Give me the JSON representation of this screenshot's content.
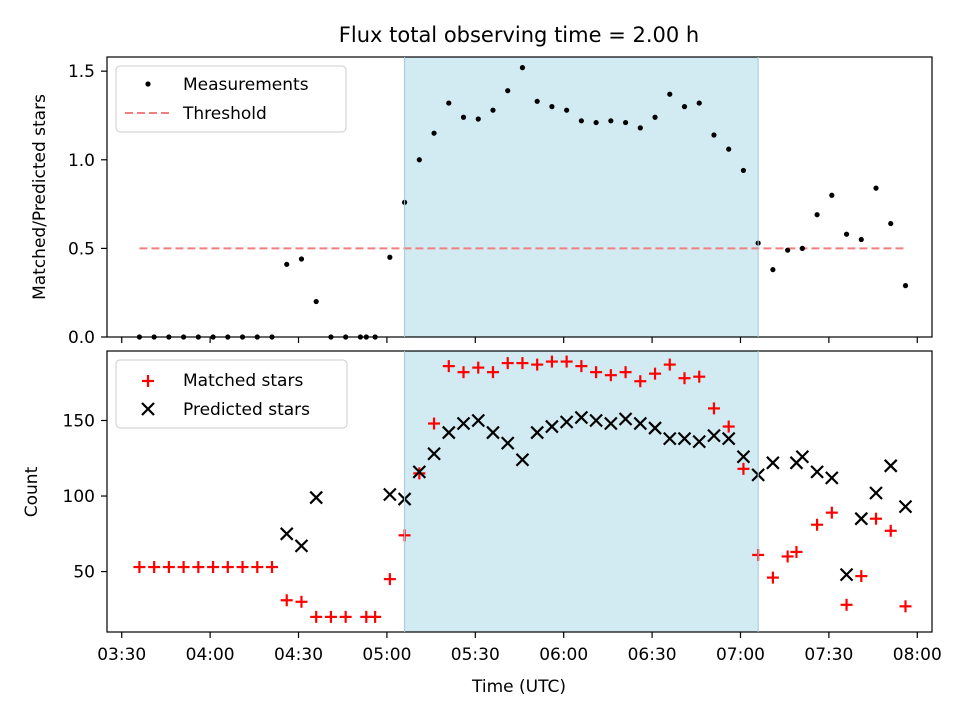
{
  "chart_data": [
    {
      "type": "scatter",
      "title": "Flux total observing time = 2.00 h",
      "ylabel": "Matched/Predicted stars",
      "xlabel": "",
      "xlim": [
        "03:25",
        "08:05"
      ],
      "ylim": [
        0,
        1.58
      ],
      "yticks": [
        0.0,
        0.5,
        1.0,
        1.5
      ],
      "ytick_labels": [
        "0.0",
        "0.5",
        "1.0",
        "1.5"
      ],
      "shaded_region": {
        "from": "05:06",
        "to": "07:06",
        "color": "#add8e6"
      },
      "legend_position": "upper left",
      "legend": [
        "Measurements",
        "Threshold"
      ],
      "threshold": {
        "name": "Threshold",
        "value": 0.5,
        "x_from": "03:36",
        "x_to": "07:56",
        "color": "#f08080",
        "style": "dashed"
      },
      "series": [
        {
          "name": "Measurements",
          "marker": "dot",
          "color": "#000000",
          "points": [
            [
              "03:36",
              0.0
            ],
            [
              "03:41",
              0.0
            ],
            [
              "03:46",
              0.0
            ],
            [
              "03:51",
              0.0
            ],
            [
              "03:56",
              0.0
            ],
            [
              "04:01",
              0.0
            ],
            [
              "04:06",
              0.0
            ],
            [
              "04:11",
              0.0
            ],
            [
              "04:16",
              0.0
            ],
            [
              "04:21",
              0.0
            ],
            [
              "04:26",
              0.41
            ],
            [
              "04:31",
              0.44
            ],
            [
              "04:36",
              0.2
            ],
            [
              "04:41",
              0.0
            ],
            [
              "04:46",
              0.0
            ],
            [
              "04:51",
              0.0
            ],
            [
              "04:53",
              0.0
            ],
            [
              "04:56",
              0.0
            ],
            [
              "05:01",
              0.45
            ],
            [
              "05:06",
              0.76
            ],
            [
              "05:11",
              1.0
            ],
            [
              "05:16",
              1.15
            ],
            [
              "05:21",
              1.32
            ],
            [
              "05:26",
              1.24
            ],
            [
              "05:31",
              1.23
            ],
            [
              "05:36",
              1.28
            ],
            [
              "05:41",
              1.39
            ],
            [
              "05:46",
              1.52
            ],
            [
              "05:51",
              1.33
            ],
            [
              "05:56",
              1.3
            ],
            [
              "06:01",
              1.28
            ],
            [
              "06:06",
              1.22
            ],
            [
              "06:11",
              1.21
            ],
            [
              "06:16",
              1.22
            ],
            [
              "06:21",
              1.21
            ],
            [
              "06:26",
              1.18
            ],
            [
              "06:31",
              1.24
            ],
            [
              "06:36",
              1.37
            ],
            [
              "06:41",
              1.3
            ],
            [
              "06:46",
              1.32
            ],
            [
              "06:51",
              1.14
            ],
            [
              "06:56",
              1.06
            ],
            [
              "07:01",
              0.94
            ],
            [
              "07:06",
              0.53
            ],
            [
              "07:11",
              0.38
            ],
            [
              "07:16",
              0.49
            ],
            [
              "07:21",
              0.5
            ],
            [
              "07:26",
              0.69
            ],
            [
              "07:31",
              0.8
            ],
            [
              "07:36",
              0.58
            ],
            [
              "07:41",
              0.55
            ],
            [
              "07:46",
              0.84
            ],
            [
              "07:51",
              0.64
            ],
            [
              "07:56",
              0.29
            ]
          ]
        }
      ]
    },
    {
      "type": "scatter",
      "title": "",
      "ylabel": "Count",
      "xlabel": "Time (UTC)",
      "xlim": [
        "03:25",
        "08:05"
      ],
      "ylim": [
        10,
        196
      ],
      "yticks": [
        50,
        100,
        150
      ],
      "ytick_labels": [
        "50",
        "100",
        "150"
      ],
      "xticks": [
        "03:30",
        "04:00",
        "04:30",
        "05:00",
        "05:30",
        "06:00",
        "06:30",
        "07:00",
        "07:30",
        "08:00"
      ],
      "shaded_region": {
        "from": "05:06",
        "to": "07:06",
        "color": "#add8e6"
      },
      "legend_position": "upper left",
      "legend": [
        "Matched stars",
        "Predicted stars"
      ],
      "series": [
        {
          "name": "Matched stars",
          "marker": "plus",
          "color": "#ff0000",
          "points": [
            [
              "03:36",
              53
            ],
            [
              "03:41",
              53
            ],
            [
              "03:46",
              53
            ],
            [
              "03:51",
              53
            ],
            [
              "03:56",
              53
            ],
            [
              "04:01",
              53
            ],
            [
              "04:06",
              53
            ],
            [
              "04:11",
              53
            ],
            [
              "04:16",
              53
            ],
            [
              "04:21",
              53
            ],
            [
              "04:26",
              31
            ],
            [
              "04:31",
              30
            ],
            [
              "04:36",
              20
            ],
            [
              "04:41",
              20
            ],
            [
              "04:46",
              20
            ],
            [
              "04:53",
              20
            ],
            [
              "04:56",
              20
            ],
            [
              "05:01",
              45
            ],
            [
              "05:06",
              74
            ],
            [
              "05:11",
              115
            ],
            [
              "05:16",
              148
            ],
            [
              "05:21",
              186
            ],
            [
              "05:26",
              182
            ],
            [
              "05:31",
              185
            ],
            [
              "05:36",
              182
            ],
            [
              "05:41",
              188
            ],
            [
              "05:46",
              188
            ],
            [
              "05:51",
              187
            ],
            [
              "05:56",
              189
            ],
            [
              "06:01",
              189
            ],
            [
              "06:06",
              186
            ],
            [
              "06:11",
              182
            ],
            [
              "06:16",
              180
            ],
            [
              "06:21",
              182
            ],
            [
              "06:26",
              176
            ],
            [
              "06:31",
              181
            ],
            [
              "06:36",
              187
            ],
            [
              "06:41",
              178
            ],
            [
              "06:46",
              179
            ],
            [
              "06:51",
              158
            ],
            [
              "06:56",
              146
            ],
            [
              "07:01",
              118
            ],
            [
              "07:06",
              61
            ],
            [
              "07:11",
              46
            ],
            [
              "07:16",
              60
            ],
            [
              "07:19",
              63
            ],
            [
              "07:26",
              81
            ],
            [
              "07:31",
              89
            ],
            [
              "07:36",
              28
            ],
            [
              "07:41",
              47
            ],
            [
              "07:46",
              85
            ],
            [
              "07:51",
              77
            ],
            [
              "07:56",
              27
            ]
          ]
        },
        {
          "name": "Predicted stars",
          "marker": "x",
          "color": "#000000",
          "points": [
            [
              "04:26",
              75
            ],
            [
              "04:31",
              67
            ],
            [
              "04:36",
              99
            ],
            [
              "05:01",
              101
            ],
            [
              "05:06",
              98
            ],
            [
              "05:11",
              116
            ],
            [
              "05:16",
              128
            ],
            [
              "05:21",
              142
            ],
            [
              "05:26",
              148
            ],
            [
              "05:31",
              150
            ],
            [
              "05:36",
              142
            ],
            [
              "05:41",
              135
            ],
            [
              "05:46",
              124
            ],
            [
              "05:51",
              142
            ],
            [
              "05:56",
              146
            ],
            [
              "06:01",
              149
            ],
            [
              "06:06",
              152
            ],
            [
              "06:11",
              150
            ],
            [
              "06:16",
              148
            ],
            [
              "06:21",
              151
            ],
            [
              "06:26",
              148
            ],
            [
              "06:31",
              145
            ],
            [
              "06:36",
              138
            ],
            [
              "06:41",
              138
            ],
            [
              "06:46",
              136
            ],
            [
              "06:51",
              140
            ],
            [
              "06:56",
              138
            ],
            [
              "07:01",
              126
            ],
            [
              "07:06",
              114
            ],
            [
              "07:11",
              122
            ],
            [
              "07:19",
              122
            ],
            [
              "07:21",
              126
            ],
            [
              "07:26",
              116
            ],
            [
              "07:31",
              112
            ],
            [
              "07:36",
              48
            ],
            [
              "07:41",
              85
            ],
            [
              "07:46",
              102
            ],
            [
              "07:51",
              120
            ],
            [
              "07:56",
              93
            ]
          ]
        }
      ]
    }
  ]
}
